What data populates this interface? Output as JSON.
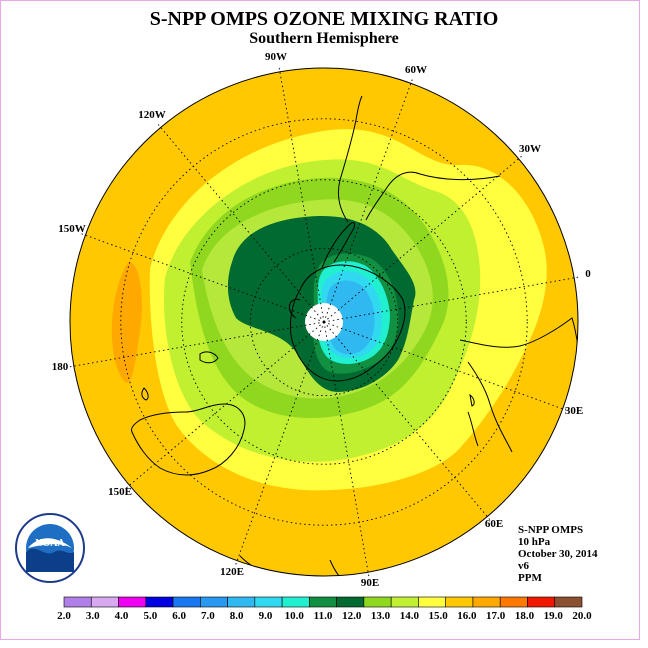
{
  "title": "S-NPP OMPS OZONE MIXING RATIO",
  "subtitle": "Southern Hemisphere",
  "logo_text": "NOAA",
  "info": {
    "instrument": "S-NPP OMPS",
    "level": "10 hPa",
    "date": "October 30, 2014",
    "version": "v6",
    "units": "PPM"
  },
  "longitude_labels": [
    "90W",
    "60W",
    "120W",
    "30W",
    "150W",
    "0",
    "180",
    "30E",
    "150E",
    "60E",
    "120E",
    "90E"
  ],
  "colorbar": {
    "ticks": [
      "2.0",
      "3.0",
      "4.0",
      "5.0",
      "6.0",
      "7.0",
      "8.0",
      "9.0",
      "10.0",
      "11.0",
      "12.0",
      "13.0",
      "14.0",
      "15.0",
      "16.0",
      "17.0",
      "18.0",
      "19.0",
      "20.0"
    ],
    "colors": [
      "#b080e8",
      "#d8a8f0",
      "#f000f0",
      "#0000e0",
      "#1878f0",
      "#2898f0",
      "#30b8f0",
      "#30d8f0",
      "#20f0d0",
      "#109040",
      "#006a30",
      "#90d820",
      "#c0f030",
      "#ffff40",
      "#ffc800",
      "#ffa800",
      "#ff7800",
      "#f01800",
      "#8a5030"
    ]
  }
}
